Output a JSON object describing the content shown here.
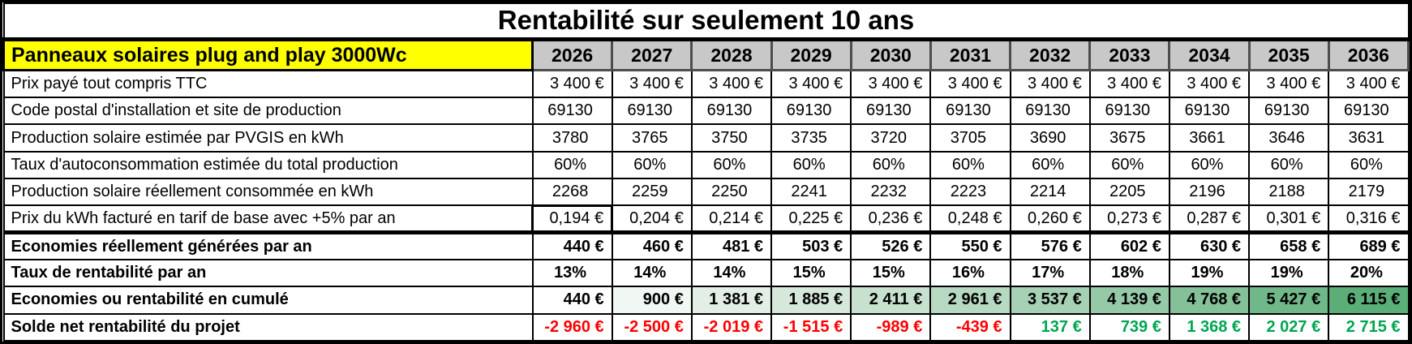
{
  "title": "Rentabilité sur seulement 10 ans",
  "corner_label": "Panneaux solaires plug and play 3000Wc",
  "years": [
    "2026",
    "2027",
    "2028",
    "2029",
    "2030",
    "2031",
    "2032",
    "2033",
    "2034",
    "2035",
    "2036"
  ],
  "rows": [
    {
      "label": "Prix payé tout compris TTC",
      "bold": false,
      "align": "right",
      "values": [
        "3 400 €",
        "3 400 €",
        "3 400 €",
        "3 400 €",
        "3 400 €",
        "3 400 €",
        "3 400 €",
        "3 400 €",
        "3 400 €",
        "3 400 €",
        "3 400 €"
      ]
    },
    {
      "label": "Code postal d'installation et site de production",
      "bold": false,
      "align": "center",
      "values": [
        "69130",
        "69130",
        "69130",
        "69130",
        "69130",
        "69130",
        "69130",
        "69130",
        "69130",
        "69130",
        "69130"
      ]
    },
    {
      "label": "Production solaire estimée par PVGIS en kWh",
      "bold": false,
      "align": "center",
      "values": [
        "3780",
        "3765",
        "3750",
        "3735",
        "3720",
        "3705",
        "3690",
        "3675",
        "3661",
        "3646",
        "3631"
      ]
    },
    {
      "label": "Taux d'autoconsommation estimée du total production",
      "bold": false,
      "align": "center",
      "values": [
        "60%",
        "60%",
        "60%",
        "60%",
        "60%",
        "60%",
        "60%",
        "60%",
        "60%",
        "60%",
        "60%"
      ]
    },
    {
      "label": "Production solaire réellement consommée en kWh",
      "bold": false,
      "align": "center",
      "values": [
        "2268",
        "2259",
        "2250",
        "2241",
        "2232",
        "2223",
        "2214",
        "2205",
        "2196",
        "2188",
        "2179"
      ]
    },
    {
      "label": "Prix du kWh facturé en tarif de base avec +5% par an",
      "bold": false,
      "align": "right",
      "selected_col": 0,
      "values": [
        "0,194 €",
        "0,204 €",
        "0,214 €",
        "0,225 €",
        "0,236 €",
        "0,248 €",
        "0,260 €",
        "0,273 €",
        "0,287 €",
        "0,301 €",
        "0,316 €"
      ]
    },
    {
      "label": "Economies réellement générées par an",
      "bold": true,
      "align": "right",
      "thick_top": true,
      "values": [
        "440 €",
        "460 €",
        "481 €",
        "503 €",
        "526 €",
        "550 €",
        "576 €",
        "602 €",
        "630 €",
        "658 €",
        "689 €"
      ]
    },
    {
      "label": "Taux de rentabilité par an",
      "bold": true,
      "align": "center",
      "values": [
        "13%",
        "14%",
        "14%",
        "15%",
        "15%",
        "16%",
        "17%",
        "18%",
        "19%",
        "19%",
        "20%"
      ]
    },
    {
      "label": "Economies ou rentabilité en cumulé",
      "bold": true,
      "align": "right",
      "values": [
        "440 €",
        "900 €",
        "1 381 €",
        "1 885 €",
        "2 411 €",
        "2 961 €",
        "3 537 €",
        "4 139 €",
        "4 768 €",
        "5 427 €",
        "6 115 €"
      ],
      "backgrounds": [
        "#ffffff",
        "#f1f7f2",
        "#e3efe6",
        "#d5e8da",
        "#c7e1ce",
        "#b7d9c1",
        "#a7d1b4",
        "#96c9a7",
        "#84c098",
        "#70b889",
        "#5bae78"
      ]
    },
    {
      "label": "Solde net rentabilité du projet",
      "bold": true,
      "align": "right",
      "values": [
        "-2 960 €",
        "-2 500 €",
        "-2 019 €",
        "-1 515 €",
        "-989 €",
        "-439 €",
        "137 €",
        "739 €",
        "1 368 €",
        "2 027 €",
        "2 715 €"
      ],
      "text_colors": [
        "#ff0000",
        "#ff0000",
        "#ff0000",
        "#ff0000",
        "#ff0000",
        "#ff0000",
        "#00a551",
        "#00a551",
        "#00a551",
        "#00a551",
        "#00a551"
      ]
    }
  ],
  "colors": {
    "corner_bg": "#ffff00",
    "year_header_bg": "#c8c8c8",
    "year_header_border": "#4d4d4d",
    "negative_text": "#ff0000",
    "positive_text": "#00a551",
    "grid_border": "#000000"
  }
}
